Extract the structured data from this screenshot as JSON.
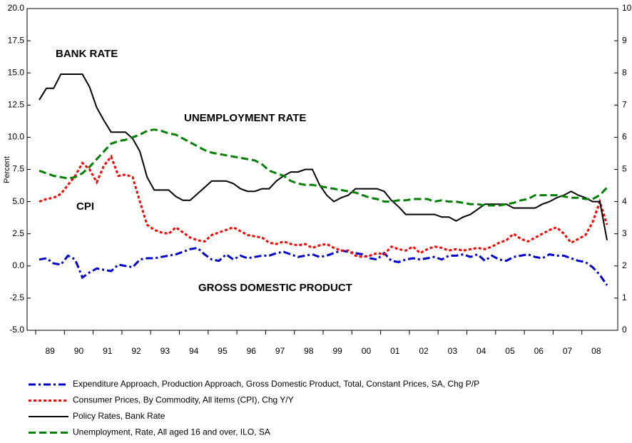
{
  "chart_data": {
    "type": "line",
    "ylabel": "Percent",
    "categories": [
      null,
      null,
      "89",
      null,
      null,
      null,
      "90",
      null,
      null,
      null,
      "91",
      null,
      null,
      null,
      "92",
      null,
      null,
      null,
      "93",
      null,
      null,
      null,
      "94",
      null,
      null,
      null,
      "95",
      null,
      null,
      null,
      "96",
      null,
      null,
      null,
      "97",
      null,
      null,
      null,
      "98",
      null,
      null,
      null,
      "99",
      null,
      null,
      null,
      "00",
      null,
      null,
      null,
      "01",
      null,
      null,
      null,
      "02",
      null,
      null,
      null,
      "03",
      null,
      null,
      null,
      "04",
      null,
      null,
      null,
      "05",
      null,
      null,
      null,
      "06",
      null,
      null,
      null,
      "07",
      null,
      null,
      null,
      "08",
      null
    ],
    "ylim": [
      -5,
      20
    ],
    "yticks": [
      {
        "value": -5,
        "label": "-5.0"
      },
      {
        "value": -2.5,
        "label": "-2.5"
      },
      {
        "value": 0,
        "label": "0.0"
      },
      {
        "value": 2.5,
        "label": "2.5"
      },
      {
        "value": 5,
        "label": "5.0"
      },
      {
        "value": 7.5,
        "label": "7.5"
      },
      {
        "value": 10,
        "label": "10.0"
      },
      {
        "value": 12.5,
        "label": "12.5"
      },
      {
        "value": 15,
        "label": "15.0"
      },
      {
        "value": 17.5,
        "label": "17.5"
      },
      {
        "value": 20,
        "label": "20.0"
      }
    ],
    "y2lim": [
      0,
      10
    ],
    "y2ticks": [
      0,
      1,
      2,
      3,
      4,
      5,
      6,
      7,
      8,
      9,
      10
    ],
    "grid": false,
    "legend": "bottom",
    "series": [
      {
        "name": "Expenditure Approach, Production Approach, Gross Domestic Product, Total, Constant Prices, SA, Chg P/P",
        "color": "#0000cc",
        "style": "dashdot",
        "values": [
          0.5,
          0.6,
          0.2,
          0.1,
          0.8,
          0.5,
          -0.9,
          -0.5,
          -0.2,
          -0.3,
          -0.4,
          0.1,
          0.0,
          -0.1,
          0.5,
          0.6,
          0.6,
          0.7,
          0.8,
          0.9,
          1.1,
          1.3,
          1.4,
          0.9,
          0.5,
          0.4,
          0.9,
          0.5,
          0.8,
          0.6,
          0.7,
          0.8,
          0.8,
          1.0,
          1.1,
          0.9,
          0.7,
          0.8,
          0.9,
          0.7,
          0.8,
          1.0,
          1.2,
          1.1,
          1.0,
          0.9,
          0.6,
          0.5,
          1.0,
          0.4,
          0.3,
          0.5,
          0.6,
          0.5,
          0.6,
          0.7,
          0.5,
          0.8,
          0.8,
          0.9,
          0.7,
          0.9,
          0.4,
          0.8,
          0.5,
          0.4,
          0.7,
          0.8,
          0.9,
          0.7,
          0.6,
          0.9,
          0.8,
          0.8,
          0.6,
          0.4,
          0.3,
          -0.1,
          -0.7,
          -1.5
        ]
      },
      {
        "name": "Consumer Prices, By Commodity, All items (CPI), Chg Y/Y",
        "color": "#ff0000",
        "style": "dotted",
        "values": [
          5.0,
          5.2,
          5.3,
          5.6,
          6.3,
          7.0,
          8.0,
          7.5,
          6.5,
          7.8,
          8.5,
          7.0,
          7.1,
          6.9,
          5.0,
          3.2,
          2.8,
          2.6,
          2.5,
          3.0,
          2.6,
          2.2,
          2.0,
          1.9,
          2.4,
          2.6,
          2.8,
          3.0,
          2.7,
          2.4,
          2.3,
          2.2,
          1.8,
          1.7,
          1.9,
          1.7,
          1.6,
          1.7,
          1.4,
          1.6,
          1.7,
          1.4,
          1.2,
          1.2,
          0.8,
          0.7,
          0.8,
          1.0,
          0.9,
          1.5,
          1.3,
          1.2,
          1.5,
          1.0,
          1.3,
          1.5,
          1.4,
          1.2,
          1.3,
          1.2,
          1.3,
          1.4,
          1.3,
          1.5,
          1.8,
          2.0,
          2.5,
          2.1,
          1.9,
          2.2,
          2.5,
          2.8,
          3.0,
          2.5,
          1.8,
          2.1,
          2.4,
          3.4,
          5.0,
          3.2
        ]
      },
      {
        "name": "Policy Rates, Bank Rate",
        "color": "#000000",
        "style": "solid",
        "values": [
          12.9,
          13.8,
          13.8,
          14.9,
          14.9,
          14.9,
          14.9,
          13.9,
          12.3,
          11.3,
          10.4,
          10.4,
          10.4,
          9.9,
          8.9,
          6.9,
          5.9,
          5.9,
          5.9,
          5.4,
          5.1,
          5.1,
          5.6,
          6.1,
          6.6,
          6.6,
          6.6,
          6.4,
          6.0,
          5.8,
          5.8,
          6.0,
          6.0,
          6.6,
          7.0,
          7.3,
          7.3,
          7.5,
          7.5,
          6.3,
          5.5,
          5.0,
          5.3,
          5.5,
          6.0,
          6.0,
          6.0,
          6.0,
          5.8,
          5.1,
          4.6,
          4.0,
          4.0,
          4.0,
          4.0,
          4.0,
          3.8,
          3.8,
          3.5,
          3.8,
          4.0,
          4.4,
          4.8,
          4.8,
          4.8,
          4.8,
          4.5,
          4.5,
          4.5,
          4.5,
          4.8,
          5.0,
          5.3,
          5.5,
          5.8,
          5.5,
          5.3,
          5.0,
          5.0,
          2.0
        ]
      },
      {
        "name": "Unemployment, Rate, All aged 16 and over, ILO, SA",
        "color": "#008000",
        "style": "dashed",
        "values": [
          7.4,
          7.2,
          7.0,
          6.9,
          6.8,
          6.9,
          7.2,
          7.7,
          8.3,
          8.9,
          9.5,
          9.7,
          9.8,
          10.0,
          10.2,
          10.5,
          10.6,
          10.5,
          10.3,
          10.2,
          9.9,
          9.6,
          9.3,
          9.0,
          8.8,
          8.7,
          8.6,
          8.5,
          8.4,
          8.3,
          8.2,
          7.9,
          7.4,
          7.2,
          7.0,
          6.6,
          6.4,
          6.3,
          6.3,
          6.2,
          6.1,
          6.0,
          5.9,
          5.8,
          5.7,
          5.5,
          5.3,
          5.2,
          5.0,
          5.0,
          5.1,
          5.1,
          5.2,
          5.2,
          5.2,
          5.0,
          5.1,
          5.0,
          5.0,
          4.9,
          4.8,
          4.8,
          4.7,
          4.7,
          4.7,
          4.8,
          4.9,
          5.1,
          5.2,
          5.5,
          5.5,
          5.5,
          5.5,
          5.4,
          5.3,
          5.3,
          5.2,
          5.2,
          5.5,
          6.1
        ]
      }
    ],
    "annotations": [
      {
        "text": "BANK RATE",
        "color": "#000000"
      },
      {
        "text": "UNEMPLOYMENT RATE",
        "color": "#008000"
      },
      {
        "text": "CPI",
        "color": "#ff0000"
      },
      {
        "text": "GROSS DOMESTIC PRODUCT",
        "color": "#000099"
      }
    ]
  }
}
